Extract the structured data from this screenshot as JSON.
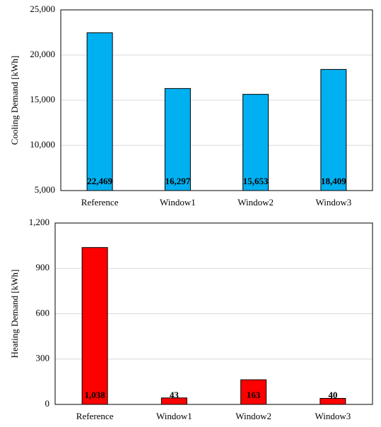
{
  "chart_data": [
    {
      "type": "bar",
      "y_label": "Cooling Demand [kWh]",
      "categories": [
        "Reference",
        "Window1",
        "Window2",
        "Window3"
      ],
      "values": [
        22469,
        16297,
        15653,
        18409
      ],
      "value_labels": [
        "22,469",
        "16,297",
        "15,653",
        "18,409"
      ],
      "color": "#00b0f0",
      "ylim": [
        5000,
        25000
      ],
      "yticks": [
        {
          "value": 5000,
          "label": "5,000"
        },
        {
          "value": 10000,
          "label": "10,000"
        },
        {
          "value": 15000,
          "label": "15,000"
        },
        {
          "value": 20000,
          "label": "20,000"
        },
        {
          "value": 25000,
          "label": "25,000"
        }
      ],
      "grid": true
    },
    {
      "type": "bar",
      "y_label": "Heating Demand [kWh]",
      "categories": [
        "Reference",
        "Window1",
        "Window2",
        "Window3"
      ],
      "values": [
        1038,
        43,
        163,
        40
      ],
      "value_labels": [
        "1,038",
        "43",
        "163",
        "40"
      ],
      "color": "#ff0000",
      "ylim": [
        0,
        1200
      ],
      "yticks": [
        0,
        300,
        600,
        900,
        {
          "value": 1200,
          "label": "1,200"
        }
      ],
      "grid": true
    }
  ]
}
